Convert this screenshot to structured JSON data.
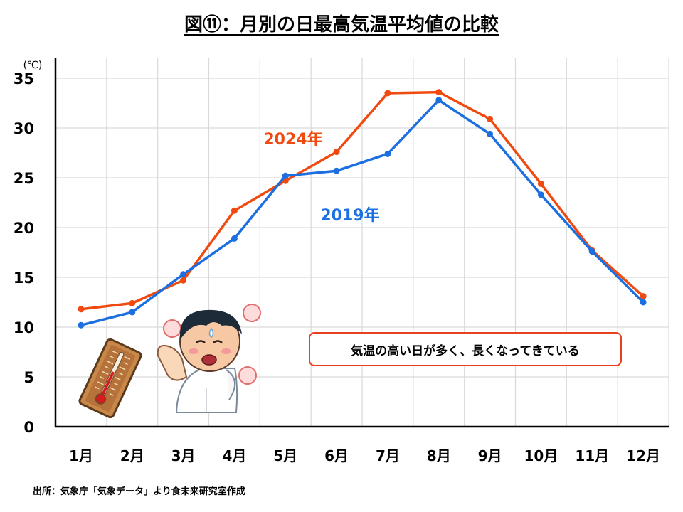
{
  "title": "図⑪：月別の日最高気温平均値の比較",
  "source": "出所：気象庁「気象データ」より食未来研究室作成",
  "annotation": "気温の高い日が多く、長くなってきている",
  "chart_data": {
    "type": "line",
    "title": "図⑪：月別の日最高気温平均値の比較",
    "xlabel": "",
    "ylabel": "",
    "y_unit": "(℃)",
    "categories": [
      "1月",
      "2月",
      "3月",
      "4月",
      "5月",
      "6月",
      "7月",
      "8月",
      "9月",
      "10月",
      "11月",
      "12月"
    ],
    "ylim": [
      0,
      37
    ],
    "y_ticks": [
      0,
      5,
      10,
      15,
      20,
      25,
      30,
      35
    ],
    "grid": true,
    "series": [
      {
        "name": "2024年",
        "color": "#f04a10",
        "values": [
          11.8,
          12.4,
          14.7,
          21.7,
          24.7,
          27.6,
          33.5,
          33.6,
          30.9,
          24.4,
          17.7,
          13.1
        ]
      },
      {
        "name": "2019年",
        "color": "#1b6fe0",
        "values": [
          10.2,
          11.5,
          15.3,
          18.9,
          25.2,
          25.7,
          27.4,
          32.8,
          29.4,
          23.3,
          17.6,
          12.5
        ]
      }
    ]
  },
  "illustrations": {
    "thermometer": "thermometer-icon",
    "person": "sweating-person-icon"
  }
}
